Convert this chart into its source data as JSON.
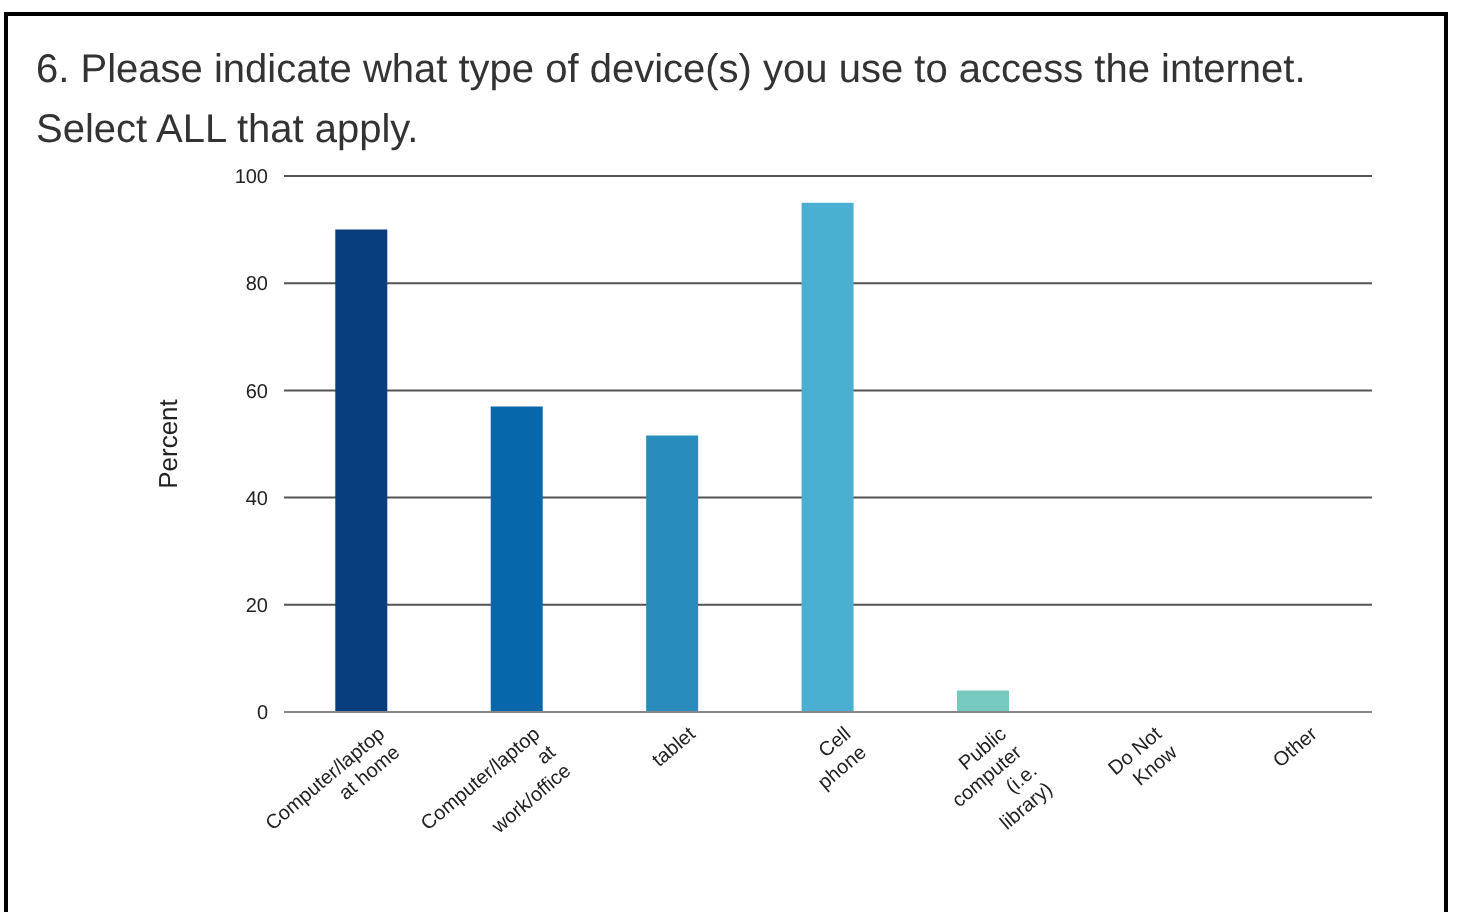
{
  "chart_data": {
    "type": "bar",
    "title": "6. Please indicate what type of device(s) you use to access the internet. Select ALL that apply.",
    "ylabel": "Percent",
    "categories": [
      "Computer/laptop\nat home",
      "Computer/laptop\nat\nwork/office",
      "tablet",
      "Cell\nphone",
      "Public\ncomputer\n(i.e.\nlibrary)",
      "Do Not\nKnow",
      "Other"
    ],
    "values": [
      90,
      57,
      51.6,
      95,
      4,
      0,
      0
    ],
    "colors": [
      "#0a3d7d",
      "#0866aa",
      "#2a8bbd",
      "#4bafd3",
      "#76c9bf",
      "#8fd0a0",
      "#8fd0a0"
    ],
    "ylim": [
      0,
      100
    ],
    "yticks": [
      0,
      20,
      40,
      60,
      80,
      100
    ],
    "grid": "y"
  }
}
